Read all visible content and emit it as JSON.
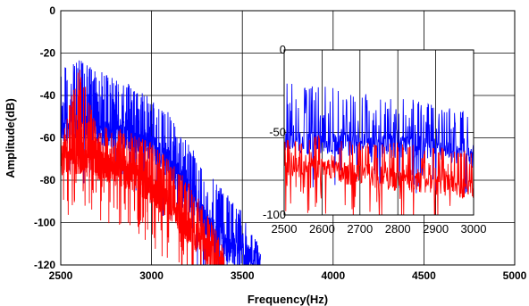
{
  "chart_data": [
    {
      "type": "line",
      "title": "",
      "xlabel": "Frequency(Hz)",
      "ylabel": "Amplitude(dB)",
      "xlim": [
        2500,
        5000
      ],
      "ylim": [
        -120,
        0
      ],
      "xticks": [
        "2500",
        "3000",
        "3500",
        "4000",
        "4500",
        "5000"
      ],
      "yticks": [
        "0",
        "-20",
        "-40",
        "-60",
        "-80",
        "-100",
        "-120"
      ],
      "grid": true,
      "legend": "none",
      "series": [
        {
          "color": "#0000ff",
          "envelope": {
            "x": [
              2500,
              2600,
              2700,
              2800,
              2900,
              3000,
              3100,
              3200,
              3300,
              3400,
              3500,
              3600
            ],
            "baseline": [
              -55,
              -55,
              -56,
              -57,
              -59,
              -64,
              -72,
              -86,
              -100,
              -110,
              -115,
              -120
            ],
            "peak": [
              -25,
              -23,
              -28,
              -32,
              -35,
              -42,
              -48,
              -62,
              -75,
              -85,
              -95,
              -110
            ]
          }
        },
        {
          "color": "#ff0000",
          "envelope": {
            "x": [
              2500,
              2600,
              2700,
              2800,
              2900,
              3000,
              3100,
              3200,
              3300,
              3400
            ],
            "baseline": [
              -70,
              -70,
              -72,
              -75,
              -78,
              -84,
              -92,
              -102,
              -112,
              -120
            ],
            "peak": [
              -60,
              -25,
              -55,
              -55,
              -58,
              -62,
              -70,
              -80,
              -95,
              -110
            ]
          }
        }
      ]
    },
    {
      "type": "line",
      "title": "",
      "xlabel": "",
      "ylabel": "",
      "xlim": [
        2500,
        3000
      ],
      "ylim": [
        -100,
        0
      ],
      "xticks": [
        "2500",
        "2600",
        "2700",
        "2800",
        "2900",
        "3000"
      ],
      "yticks": [
        "0",
        "-50",
        "-100"
      ],
      "grid": true,
      "legend": "none",
      "series": [
        {
          "color": "#0000ff",
          "envelope": {
            "x": [
              2500,
              2600,
              2700,
              2800,
              2900,
              3000
            ],
            "baseline": [
              -55,
              -56,
              -57,
              -58,
              -60,
              -64
            ],
            "peak": [
              -20,
              -22,
              -25,
              -28,
              -32,
              -38
            ]
          }
        },
        {
          "color": "#ff0000",
          "envelope": {
            "x": [
              2500,
              2600,
              2700,
              2800,
              2900,
              3000
            ],
            "baseline": [
              -70,
              -72,
              -75,
              -78,
              -80,
              -84
            ],
            "peak": [
              -55,
              -50,
              -55,
              -56,
              -58,
              -60
            ]
          }
        }
      ]
    }
  ]
}
